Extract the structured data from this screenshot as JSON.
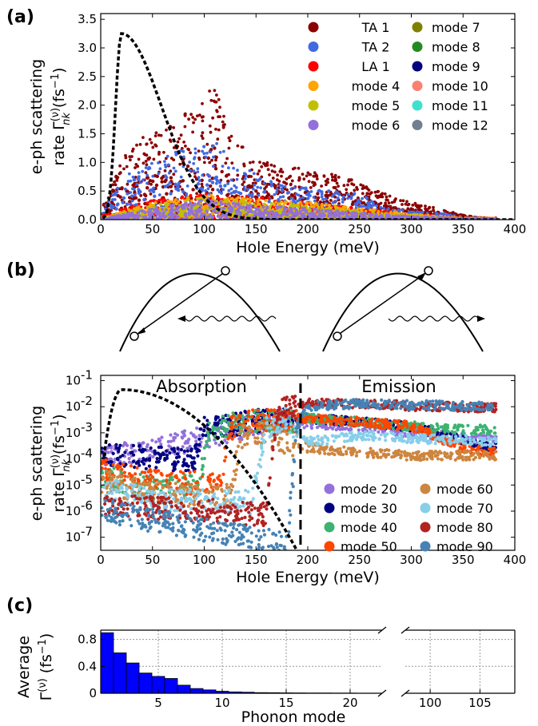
{
  "panels": {
    "a": {
      "label": "(a)",
      "ylabel_line1": "e-ph scattering",
      "ylabel_line2": "rate Γ",
      "ylabel_sup": "(ν)",
      "ylabel_sub": "nk",
      "ylabel_unit": " (fs",
      "ylabel_unit_sup": "−1",
      "ylabel_close": ")",
      "xlabel": "Hole Energy (meV)",
      "xticks": [
        "0",
        "50",
        "100",
        "150",
        "200",
        "250",
        "300",
        "350",
        "400"
      ],
      "yticks": [
        "0.0",
        "0.5",
        "1.0",
        "1.5",
        "2.0",
        "2.5",
        "3.0",
        "3.5"
      ],
      "legend": [
        {
          "label": "TA  1",
          "color": "#8b0000"
        },
        {
          "label": "mode  7",
          "color": "#808000"
        },
        {
          "label": "TA  2",
          "color": "#4169e1"
        },
        {
          "label": "mode  8",
          "color": "#228b22"
        },
        {
          "label": "LA  1",
          "color": "#ff0000"
        },
        {
          "label": "mode  9",
          "color": "#000080"
        },
        {
          "label": "mode  4",
          "color": "#ffa500"
        },
        {
          "label": "mode 10",
          "color": "#fa8072"
        },
        {
          "label": "mode  5",
          "color": "#c0c000"
        },
        {
          "label": "mode 11",
          "color": "#40e0d0"
        },
        {
          "label": "mode  6",
          "color": "#9370db"
        },
        {
          "label": "mode 12",
          "color": "#708090"
        }
      ]
    },
    "b": {
      "label": "(b)",
      "ylabel_line1": "e-ph scattering",
      "ylabel_line2": "rate Γ",
      "ylabel_sup": "(ν)",
      "ylabel_sub": "nk",
      "ylabel_unit": " (fs",
      "ylabel_unit_sup": "−1",
      "ylabel_close": ")",
      "xlabel": "Hole Energy (meV)",
      "xticks": [
        "0",
        "50",
        "100",
        "150",
        "200",
        "250",
        "300",
        "350",
        "400"
      ],
      "yticks": [
        {
          "base": "10",
          "exp": "-1"
        },
        {
          "base": "10",
          "exp": "-2"
        },
        {
          "base": "10",
          "exp": "-3"
        },
        {
          "base": "10",
          "exp": "-4"
        },
        {
          "base": "10",
          "exp": "-5"
        },
        {
          "base": "10",
          "exp": "-6"
        },
        {
          "base": "10",
          "exp": "-7"
        }
      ],
      "absorption_label": "Absorption",
      "emission_label": "Emission",
      "legend": [
        {
          "label": "mode 20",
          "color": "#9370db"
        },
        {
          "label": "mode 60",
          "color": "#cd853f"
        },
        {
          "label": "mode 30",
          "color": "#000080"
        },
        {
          "label": "mode 70",
          "color": "#87ceeb"
        },
        {
          "label": "mode 40",
          "color": "#3cb371"
        },
        {
          "label": "mode 80",
          "color": "#b22222"
        },
        {
          "label": "mode 50",
          "color": "#ff4500"
        },
        {
          "label": "mode 90",
          "color": "#4682b4"
        }
      ]
    },
    "c": {
      "label": "(c)",
      "ylabel_line1": "Average",
      "ylabel_line2": "Γ",
      "ylabel_sup": "(ν)",
      "ylabel_unit": " (fs",
      "ylabel_unit_sup": "−1",
      "ylabel_close": ")",
      "xlabel": "Phonon mode",
      "xticks_left": [
        "5",
        "10",
        "15",
        "20"
      ],
      "xticks_right": [
        "100",
        "105"
      ],
      "yticks": [
        "0",
        "0.4",
        "0.8"
      ]
    }
  },
  "chart_data": [
    {
      "type": "scatter",
      "panel": "a",
      "xlabel": "Hole Energy (meV)",
      "ylabel": "e-ph scattering rate Γ(ν)nk (fs−1)",
      "xlim": [
        0,
        400
      ],
      "ylim": [
        0,
        3.6
      ],
      "series": [
        {
          "name": "TA  1",
          "envelope_x": [
            5,
            25,
            50,
            75,
            100,
            110,
            125,
            150,
            175,
            200,
            225,
            250,
            275,
            300,
            325,
            350,
            375
          ],
          "envelope_y": [
            0.4,
            1.2,
            1.6,
            1.8,
            2.1,
            2.4,
            1.5,
            1.05,
            1.0,
            0.85,
            0.8,
            0.65,
            0.45,
            0.3,
            0.2,
            0.08,
            0.02
          ]
        },
        {
          "name": "TA  2",
          "envelope_x": [
            5,
            25,
            50,
            75,
            100,
            110,
            125,
            150,
            175,
            200,
            225,
            250,
            275,
            300,
            325,
            350,
            375
          ],
          "envelope_y": [
            0.3,
            0.8,
            1.0,
            1.2,
            1.3,
            1.4,
            1.1,
            0.8,
            0.6,
            0.55,
            0.5,
            0.45,
            0.2,
            0.15,
            0.12,
            0.05,
            0.02
          ]
        },
        {
          "name": "LA  1",
          "envelope_x": [
            5,
            50,
            100,
            150,
            200,
            250,
            300,
            350
          ],
          "envelope_y": [
            0.1,
            0.35,
            0.45,
            0.4,
            0.3,
            0.2,
            0.1,
            0.03
          ]
        },
        {
          "name": "mode  4",
          "envelope_x": [
            5,
            50,
            100,
            150,
            200,
            250,
            300,
            350
          ],
          "envelope_y": [
            0.05,
            0.3,
            0.45,
            0.35,
            0.3,
            0.2,
            0.1,
            0.03
          ]
        },
        {
          "name": "mode  5",
          "envelope_x": [
            5,
            50,
            100,
            150,
            200,
            250,
            300,
            350
          ],
          "envelope_y": [
            0.04,
            0.25,
            0.4,
            0.3,
            0.25,
            0.15,
            0.08,
            0.02
          ]
        },
        {
          "name": "mode  6",
          "envelope_x": [
            5,
            50,
            100,
            150,
            200,
            250,
            300,
            350
          ],
          "envelope_y": [
            0.03,
            0.2,
            0.35,
            0.25,
            0.2,
            0.12,
            0.06,
            0.02
          ]
        }
      ],
      "dos_curve": {
        "peak_x": 20,
        "peak_y": 3.25
      }
    },
    {
      "type": "scatter",
      "panel": "b",
      "xlabel": "Hole Energy (meV)",
      "ylabel": "e-ph scattering rate Γ(ν)nk (fs−1)",
      "xlim": [
        0,
        400
      ],
      "ylim_log10": [
        -7.5,
        -0.8
      ],
      "yscale": "log",
      "threshold_x": 193,
      "series": [
        {
          "name": "mode 20",
          "x": [
            0,
            50,
            100,
            150,
            160,
            200,
            250,
            300,
            350,
            380
          ],
          "y": [
            0.00015,
            0.0003,
            0.0009,
            0.003,
            0.004,
            0.0025,
            0.002,
            0.001,
            0.0008,
            0.0006
          ]
        },
        {
          "name": "mode 30",
          "x": [
            0,
            50,
            90,
            100,
            150,
            200,
            250,
            300,
            350,
            380
          ],
          "y": [
            0.0002,
            0.00015,
            0.00012,
            0.002,
            0.004,
            0.004,
            0.003,
            0.002,
            0.0006,
            0.0003
          ]
        },
        {
          "name": "mode 40",
          "x": [
            0,
            50,
            95,
            105,
            150,
            200,
            250,
            300,
            350,
            380
          ],
          "y": [
            3e-05,
            1e-05,
            1.2e-05,
            0.002,
            0.004,
            0.004,
            0.003,
            0.002,
            0.0015,
            0.0015
          ]
        },
        {
          "name": "mode 50",
          "x": [
            0,
            50,
            115,
            125,
            150,
            200,
            250,
            300,
            350,
            380
          ],
          "y": [
            5e-05,
            1.8e-05,
            1.5e-05,
            0.002,
            0.004,
            0.004,
            0.003,
            0.002,
            0.0003,
            0.0002
          ]
        },
        {
          "name": "mode 60",
          "x": [
            0,
            50,
            125,
            135,
            150,
            200,
            250,
            300,
            350,
            380
          ],
          "y": [
            2e-05,
            6e-06,
            5e-06,
            0.001,
            0.0015,
            0.0003,
            0.0002,
            0.00015,
            0.00015,
            0.00015
          ]
        },
        {
          "name": "mode 70",
          "x": [
            0,
            50,
            145,
            160,
            180,
            200,
            250,
            300,
            350,
            380
          ],
          "y": [
            1e-05,
            3.5e-06,
            3e-06,
            0.002,
            0.005,
            0.0005,
            0.0009,
            0.0007,
            0.0006,
            0.0005
          ]
        },
        {
          "name": "mode 80",
          "x": [
            0,
            50,
            100,
            160,
            170,
            200,
            250,
            300,
            350,
            380
          ],
          "y": [
            3e-06,
            1.8e-06,
            1.5e-06,
            1e-06,
            0.01,
            0.015,
            0.015,
            0.012,
            0.011,
            0.01
          ]
        },
        {
          "name": "mode 90",
          "x": [
            0,
            50,
            100,
            180,
            190,
            200,
            250,
            300,
            350,
            380
          ],
          "y": [
            1.5e-06,
            6e-07,
            2.5e-07,
            8e-08,
            0.002,
            0.012,
            0.015,
            0.013,
            0.012,
            0.011
          ]
        }
      ],
      "dos_curve": {
        "peak_x": 20,
        "peak_y": 0.045
      }
    },
    {
      "type": "bar",
      "panel": "c",
      "xlabel": "Phonon mode",
      "ylabel": "Average Γ(ν) (fs−1)",
      "ylim": [
        0,
        0.9
      ],
      "categories": [
        1,
        2,
        3,
        4,
        5,
        6,
        7,
        8,
        9,
        10,
        11,
        12,
        13,
        14,
        15,
        16,
        17,
        18,
        19,
        20,
        21,
        22
      ],
      "values": [
        0.9,
        0.6,
        0.45,
        0.3,
        0.25,
        0.22,
        0.12,
        0.07,
        0.05,
        0.03,
        0.02,
        0.015,
        0.01,
        0.008,
        0.006,
        0.005,
        0.004,
        0.003,
        0.002,
        0.002,
        0.001,
        0.001
      ],
      "bar_color": "#0000ff",
      "grid": true
    }
  ]
}
